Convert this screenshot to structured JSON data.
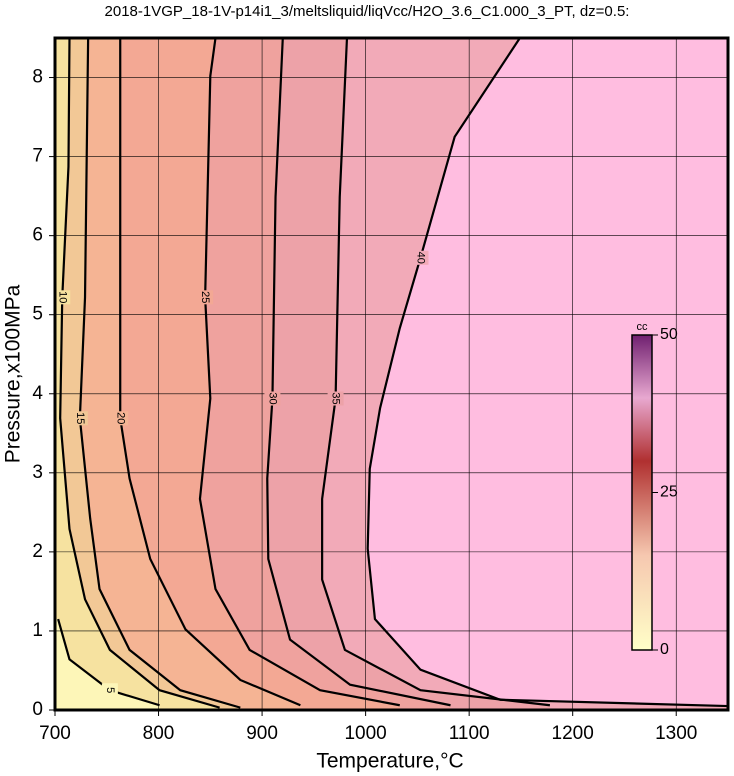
{
  "chart_data": {
    "type": "contour",
    "title": "2018-1VGP_18-1V-p14i1_3/meltsliquid/liqVcc/H2O_3.6_C1.000_3_PT, dz=0.5:",
    "xlabel": "Temperature,°C",
    "ylabel": "Pressure,x100MPa",
    "xlim": [
      700,
      1350
    ],
    "ylim": [
      0,
      8.5
    ],
    "xticks": [
      700,
      800,
      900,
      1000,
      1100,
      1200,
      1300
    ],
    "yticks": [
      0,
      1,
      2,
      3,
      4,
      5,
      6,
      7,
      8
    ],
    "grid": true,
    "background": "#ffbde0",
    "colorbar": {
      "label": "cc",
      "clim": [
        0,
        50
      ],
      "ticks": [
        0,
        25,
        50
      ]
    },
    "series": [
      {
        "level": 40,
        "color": "#f2aab8",
        "x": [
          1149,
          1086,
          1053,
          1033,
          1014,
          1004,
          1002,
          1009,
          1053,
          1130,
          1350
        ],
        "y": [
          8.5,
          7.25,
          5.72,
          4.83,
          3.82,
          3.05,
          2.04,
          1.15,
          0.51,
          0.13,
          0.05
        ]
      },
      {
        "level": 35,
        "color": "#eda2a8",
        "x": [
          982,
          975,
          971,
          958,
          958,
          980,
          1053,
          1178
        ],
        "y": [
          8.5,
          6.49,
          3.94,
          2.67,
          1.65,
          0.76,
          0.25,
          0.06
        ]
      },
      {
        "level": 30,
        "color": "#efa29e",
        "x": [
          920,
          913,
          910,
          905,
          906,
          927,
          985,
          1082
        ],
        "y": [
          8.5,
          6.49,
          3.94,
          2.93,
          1.91,
          0.89,
          0.32,
          0.06
        ]
      },
      {
        "level": 25,
        "color": "#f3a894",
        "x": [
          855,
          850,
          845,
          850,
          840,
          855,
          888,
          956,
          1033
        ],
        "y": [
          8.5,
          8.02,
          5.22,
          3.94,
          2.67,
          1.53,
          0.76,
          0.25,
          0.06
        ]
      },
      {
        "level": 20,
        "color": "#f5b494",
        "x": [
          763,
          763,
          763,
          772,
          792,
          826,
          879,
          937
        ],
        "y": [
          8.5,
          5.34,
          3.69,
          2.93,
          1.91,
          1.02,
          0.38,
          0.06
        ]
      },
      {
        "level": 15,
        "color": "#f2c896",
        "x": [
          732,
          729,
          724,
          734,
          743,
          772,
          821,
          879
        ],
        "y": [
          8.5,
          5.22,
          3.69,
          2.42,
          1.53,
          0.76,
          0.25,
          0.03
        ]
      },
      {
        "level": 10,
        "color": "#f6e2a0",
        "x": [
          714,
          713,
          707,
          705,
          714,
          729,
          753,
          801,
          859
        ],
        "y": [
          8.5,
          6.87,
          5.22,
          3.69,
          2.29,
          1.4,
          0.76,
          0.25,
          0.03
        ]
      },
      {
        "level": 5,
        "color": "#fdf6b8",
        "x": [
          703,
          714,
          753,
          801
        ],
        "y": [
          1.15,
          0.64,
          0.25,
          0.06
        ]
      }
    ]
  }
}
